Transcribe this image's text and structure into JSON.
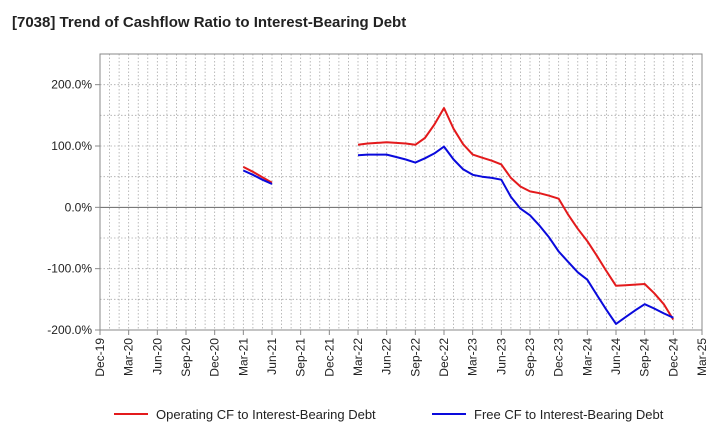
{
  "chart_data": {
    "type": "line",
    "title": "[7038]  Trend of Cashflow Ratio to Interest-Bearing Debt",
    "xlabel": "",
    "ylabel": "",
    "ylim": [
      -200,
      250
    ],
    "y_ticks": [
      200,
      100,
      0,
      -100,
      -200
    ],
    "y_tick_labels": [
      "200.0%",
      "100.0%",
      "0.0%",
      "-100.0%",
      "-200.0%"
    ],
    "x_tick_labels": [
      "Dec-19",
      "Mar-20",
      "Jun-20",
      "Sep-20",
      "Dec-20",
      "Mar-21",
      "Jun-21",
      "Sep-21",
      "Dec-21",
      "Mar-22",
      "Jun-22",
      "Sep-22",
      "Dec-22",
      "Mar-23",
      "Jun-23",
      "Sep-23",
      "Dec-23",
      "Mar-24",
      "Jun-24",
      "Sep-24",
      "Dec-24",
      "Mar-25"
    ],
    "grid": true,
    "legend_position": "bottom",
    "series": [
      {
        "name": "Operating CF to Interest-Bearing Debt",
        "color": "#e31a1c",
        "segments": [
          [
            [
              "Mar-21",
              66
            ],
            [
              "Apr-21",
              58
            ],
            [
              "May-21",
              49
            ],
            [
              "Jun-21",
              40
            ]
          ],
          [
            [
              "Mar-22",
              102
            ],
            [
              "Apr-22",
              104
            ],
            [
              "May-22",
              105
            ],
            [
              "Jun-22",
              106
            ],
            [
              "Jul-22",
              105
            ],
            [
              "Aug-22",
              104
            ],
            [
              "Sep-22",
              102
            ],
            [
              "Oct-22",
              113
            ],
            [
              "Nov-22",
              135
            ],
            [
              "Dec-22",
              162
            ],
            [
              "Jan-23",
              128
            ],
            [
              "Feb-23",
              103
            ],
            [
              "Mar-23",
              86
            ],
            [
              "Apr-23",
              81
            ],
            [
              "May-23",
              76
            ],
            [
              "Jun-23",
              70
            ],
            [
              "Jul-23",
              48
            ],
            [
              "Aug-23",
              34
            ],
            [
              "Sep-23",
              26
            ],
            [
              "Oct-23",
              23
            ],
            [
              "Nov-23",
              19
            ],
            [
              "Dec-23",
              14
            ],
            [
              "Jan-24",
              -12
            ],
            [
              "Feb-24",
              -35
            ],
            [
              "Mar-24",
              -55
            ],
            [
              "Apr-24",
              -79
            ],
            [
              "May-24",
              -104
            ],
            [
              "Jun-24",
              -128
            ],
            [
              "Jul-24",
              -127
            ],
            [
              "Aug-24",
              -126
            ],
            [
              "Sep-24",
              -125
            ],
            [
              "Oct-24",
              -140
            ],
            [
              "Nov-24",
              -158
            ],
            [
              "Dec-24",
              -183
            ]
          ]
        ]
      },
      {
        "name": "Free CF to Interest-Bearing Debt",
        "color": "#0a0adc",
        "segments": [
          [
            [
              "Mar-21",
              60
            ],
            [
              "Apr-21",
              53
            ],
            [
              "May-21",
              45
            ],
            [
              "Jun-21",
              38
            ]
          ],
          [
            [
              "Mar-22",
              85
            ],
            [
              "Apr-22",
              86
            ],
            [
              "May-22",
              86
            ],
            [
              "Jun-22",
              86
            ],
            [
              "Jul-22",
              82
            ],
            [
              "Aug-22",
              78
            ],
            [
              "Sep-22",
              73
            ],
            [
              "Oct-22",
              80
            ],
            [
              "Nov-22",
              88
            ],
            [
              "Dec-22",
              99
            ],
            [
              "Jan-23",
              78
            ],
            [
              "Feb-23",
              62
            ],
            [
              "Mar-23",
              53
            ],
            [
              "Apr-23",
              50
            ],
            [
              "May-23",
              48
            ],
            [
              "Jun-23",
              45
            ],
            [
              "Jul-23",
              17
            ],
            [
              "Aug-23",
              -2
            ],
            [
              "Sep-23",
              -13
            ],
            [
              "Oct-23",
              -30
            ],
            [
              "Nov-23",
              -49
            ],
            [
              "Dec-23",
              -72
            ],
            [
              "Jan-24",
              -89
            ],
            [
              "Feb-24",
              -106
            ],
            [
              "Mar-24",
              -118
            ],
            [
              "Apr-24",
              -143
            ],
            [
              "May-24",
              -167
            ],
            [
              "Jun-24",
              -190
            ],
            [
              "Jul-24",
              -179
            ],
            [
              "Aug-24",
              -168
            ],
            [
              "Sep-24",
              -158
            ],
            [
              "Oct-24",
              -165
            ],
            [
              "Nov-24",
              -173
            ],
            [
              "Dec-24",
              -180
            ]
          ]
        ]
      }
    ]
  }
}
